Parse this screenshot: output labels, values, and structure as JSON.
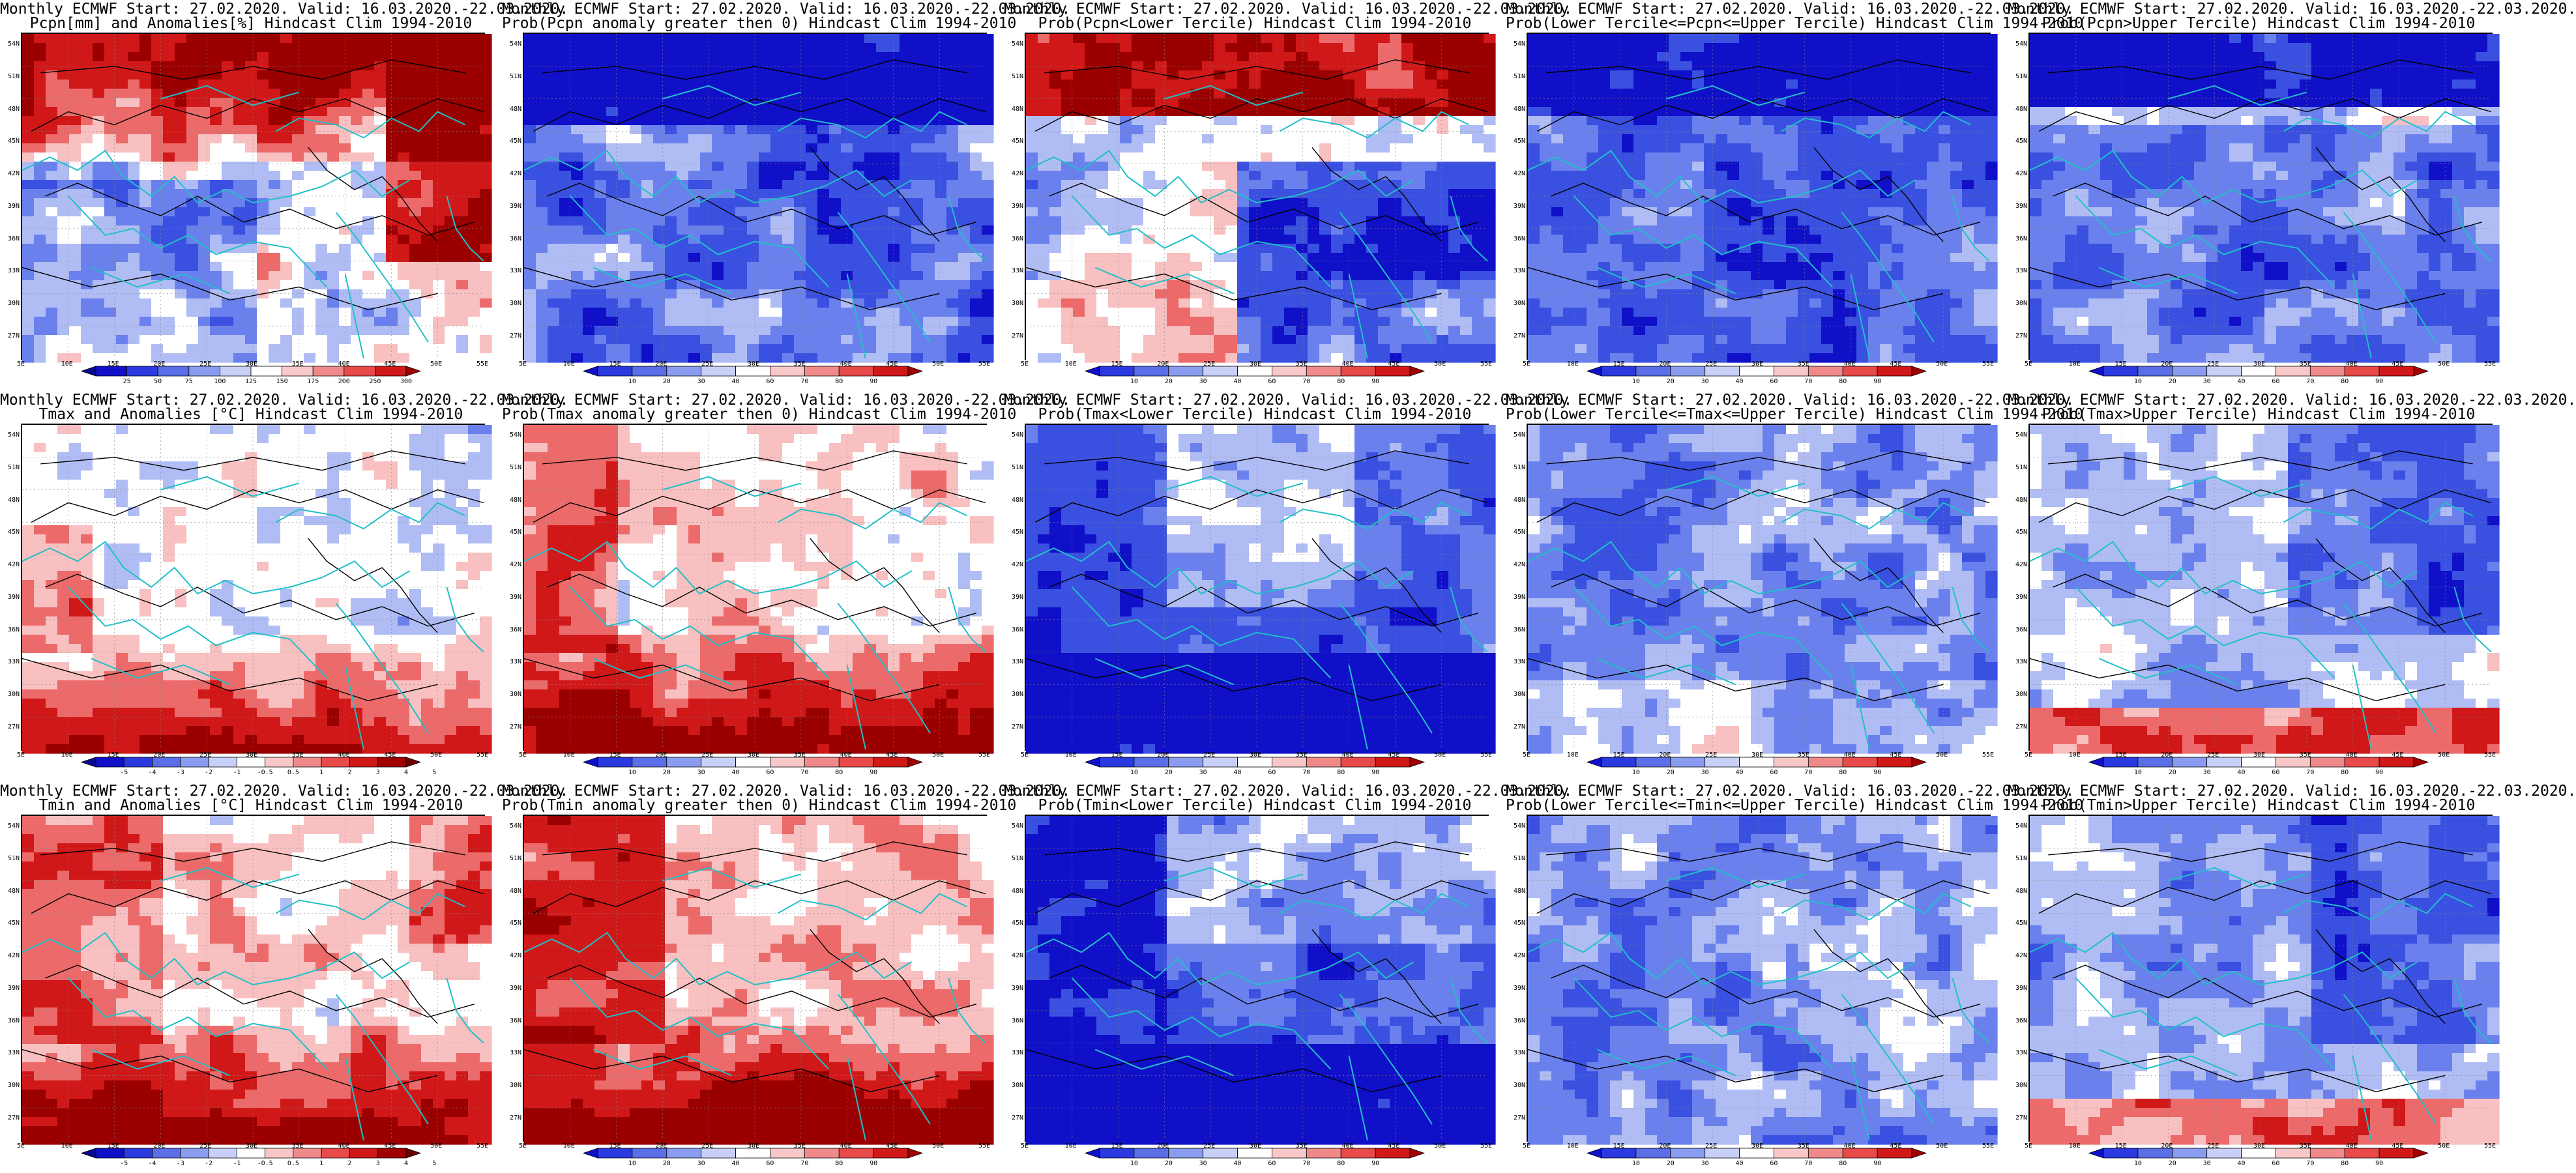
{
  "panels": [
    {
      "title1": "Monthly ECMWF Start: 27.02.2020. Valid: 16.03.2020.-22.03.2020.",
      "title2": "Pcpn[mm] and Anomalies[%] Hindcast Clim 1994-2010",
      "field": "pcpn_anom",
      "scale": "anom_pcpn"
    },
    {
      "title1": "Monthly ECMWF Start: 27.02.2020. Valid: 16.03.2020.-22.03.2020.",
      "title2": "Prob(Pcpn anomaly greater then 0) Hindcast Clim 1994-2010",
      "field": "pcpn_prob_pos",
      "scale": "prob"
    },
    {
      "title1": "Monthly ECMWF Start: 27.02.2020. Valid: 16.03.2020.-22.03.2020.",
      "title2": "Prob(Pcpn<Lower Tercile) Hindcast Clim 1994-2010",
      "field": "pcpn_prob_low",
      "scale": "prob"
    },
    {
      "title1": "Monthly ECMWF Start: 27.02.2020. Valid: 16.03.2020.-22.03.2020.",
      "title2": "Prob(Lower Tercile<=Pcpn<=Upper Tercile) Hindcast Clim 1994-2010",
      "field": "pcpn_prob_mid",
      "scale": "prob"
    },
    {
      "title1": "Monthly ECMWF Start: 27.02.2020. Valid: 16.03.2020.-22.03.2020.",
      "title2": "Prob(Pcpn>Upper Tercile) Hindcast Clim 1994-2010",
      "field": "pcpn_prob_up",
      "scale": "prob"
    },
    {
      "title1": "Monthly ECMWF Start: 27.02.2020. Valid: 16.03.2020.-22.03.2020.",
      "title2": "Tmax and Anomalies [°C] Hindcast Clim 1994-2010",
      "field": "tmax_anom",
      "scale": "anom_temp"
    },
    {
      "title1": "Monthly ECMWF Start: 27.02.2020. Valid: 16.03.2020.-22.03.2020.",
      "title2": "Prob(Tmax anomaly greater then 0) Hindcast Clim 1994-2010",
      "field": "tmax_prob_pos",
      "scale": "prob"
    },
    {
      "title1": "Monthly ECMWF Start: 27.02.2020. Valid: 16.03.2020.-22.03.2020.",
      "title2": "Prob(Tmax<Lower Tercile) Hindcast Clim 1994-2010",
      "field": "tmax_prob_low",
      "scale": "prob"
    },
    {
      "title1": "Monthly ECMWF Start: 27.02.2020. Valid: 16.03.2020.-22.03.2020.",
      "title2": "Prob(Lower Tercile<=Tmax<=Upper Tercile) Hindcast Clim 1994-2010",
      "field": "tmax_prob_mid",
      "scale": "prob"
    },
    {
      "title1": "Monthly ECMWF Start: 27.02.2020. Valid: 16.03.2020.-22.03.2020.",
      "title2": "Prob(Tmax>Upper Tercile) Hindcast Clim 1994-2010",
      "field": "tmax_prob_up",
      "scale": "prob"
    },
    {
      "title1": "Monthly ECMWF Start: 27.02.2020. Valid: 16.03.2020.-22.03.2020.",
      "title2": "Tmin and Anomalies [°C] Hindcast Clim 1994-2010",
      "field": "tmin_anom",
      "scale": "anom_temp"
    },
    {
      "title1": "Monthly ECMWF Start: 27.02.2020. Valid: 16.03.2020.-22.03.2020.",
      "title2": "Prob(Tmin anomaly greater then 0) Hindcast Clim 1994-2010",
      "field": "tmin_prob_pos",
      "scale": "prob"
    },
    {
      "title1": "Monthly ECMWF Start: 27.02.2020. Valid: 16.03.2020.-22.03.2020.",
      "title2": "Prob(Tmin<Lower Tercile) Hindcast Clim 1994-2010",
      "field": "tmin_prob_low",
      "scale": "prob"
    },
    {
      "title1": "Monthly ECMWF Start: 27.02.2020. Valid: 16.03.2020.-22.03.2020.",
      "title2": "Prob(Lower Tercile<=Tmin<=Upper Tercile) Hindcast Clim 1994-2010",
      "field": "tmin_prob_mid",
      "scale": "prob"
    },
    {
      "title1": "Monthly ECMWF Start: 27.02.2020. Valid: 16.03.2020.-22.03.2020.",
      "title2": "Prob(Tmin>Upper Tercile) Hindcast Clim 1994-2010",
      "field": "tmin_prob_up",
      "scale": "prob"
    }
  ],
  "axes": {
    "lat_labels": [
      "54N",
      "51N",
      "48N",
      "45N",
      "42N",
      "39N",
      "36N",
      "33N",
      "30N",
      "27N"
    ],
    "lon_labels": [
      "5E",
      "10E",
      "15E",
      "20E",
      "25E",
      "30E",
      "35E",
      "40E",
      "45E",
      "50E",
      "55E"
    ]
  },
  "colorbars": {
    "prob": {
      "labels": [
        "10",
        "20",
        "30",
        "40",
        "60",
        "70",
        "80",
        "90"
      ],
      "colors": [
        "#1010c8",
        "#2a3ae0",
        "#5a6ee8",
        "#8a9cf0",
        "#c8d0f8",
        "#ffffff",
        "#f8c8c8",
        "#f08a8a",
        "#e84a4a",
        "#d01818",
        "#a00000"
      ]
    },
    "anom_temp": {
      "labels": [
        "-5",
        "-4",
        "-3",
        "-2",
        "-1",
        "-0.5",
        "0.5",
        "1",
        "2",
        "3",
        "4",
        "5"
      ],
      "colors": [
        "#08088a",
        "#1010c8",
        "#2a3ae0",
        "#5a6ee8",
        "#8a9cf0",
        "#c8d0f8",
        "#ffffff",
        "#f8c8c8",
        "#f08a8a",
        "#e84a4a",
        "#d01818",
        "#a00000",
        "#700000"
      ]
    },
    "anom_pcpn": {
      "labels": [
        "25",
        "50",
        "75",
        "100",
        "125",
        "150",
        "175",
        "200",
        "250",
        "300"
      ],
      "colors": [
        "#08088a",
        "#1010c8",
        "#2a3ae0",
        "#5a6ee8",
        "#8a9cf0",
        "#c8d0f8",
        "#ffffff",
        "#f8c8c8",
        "#f08a8a",
        "#e84a4a",
        "#d01818",
        "#a00000"
      ]
    }
  },
  "field_colors": {
    "strong_blue": "#1010c8",
    "blue": "#3a50e0",
    "mid_blue": "#6a80ec",
    "light_blue": "#b0bcf4",
    "white": "#ffffff",
    "light_red": "#f8c0c0",
    "red": "#ec6a6a",
    "strong_red": "#d01818",
    "dark_red": "#9a0000",
    "coast": "#20c0c8",
    "contour": "#000000"
  }
}
